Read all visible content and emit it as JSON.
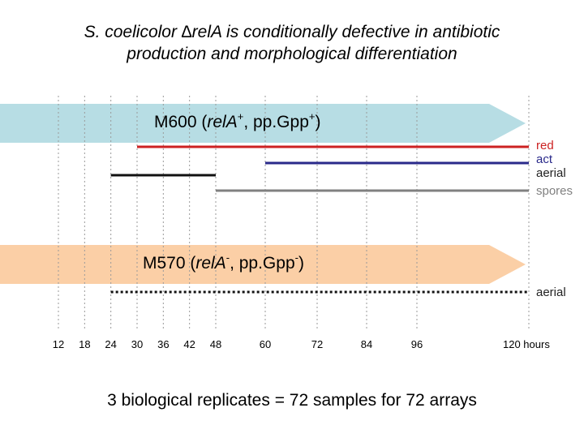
{
  "title": {
    "line1": "S. coelicolor ∆relA is conditionally defective in antibiotic",
    "line2": "production and morphological differentiation"
  },
  "strains": [
    {
      "label_pre": "M600 (",
      "gene": "relA",
      "gene_sup": "+",
      "mid": ", pp.Gpp",
      "ppgpp_sup": "+",
      "post": ")",
      "color": "#b7dde4"
    },
    {
      "label_pre": "M570 (",
      "gene": "relA",
      "gene_sup": "-",
      "mid": ", pp.Gpp",
      "ppgpp_sup": "-",
      "post": ")",
      "color": "#fbcfa6"
    }
  ],
  "timeline": {
    "unit": "hours",
    "ticks": [
      12,
      18,
      24,
      30,
      36,
      42,
      48,
      60,
      72,
      84,
      96,
      120
    ],
    "tick_labels": [
      "12",
      "18",
      "24",
      "30",
      "36",
      "42",
      "48",
      "60",
      "72",
      "84",
      "96",
      "120 hours"
    ]
  },
  "m600_tracks": [
    {
      "name": "red",
      "start_h": 30,
      "end_h": 120,
      "color": "#cc2222",
      "style": "solid"
    },
    {
      "name": "act",
      "start_h": 60,
      "end_h": 120,
      "color": "#2a2a8a",
      "style": "solid"
    },
    {
      "name": "aerial",
      "start_h": 24,
      "end_h": 48,
      "color": "#111111",
      "style": "solid"
    },
    {
      "name": "spores",
      "start_h": 48,
      "end_h": 120,
      "color": "#808080",
      "style": "solid"
    }
  ],
  "m570_tracks": [
    {
      "name": "aerial",
      "start_h": 24,
      "end_h": 120,
      "color": "#111111",
      "style": "dotted"
    }
  ],
  "legend": {
    "red": "red",
    "act": "act",
    "aerial": "aerial",
    "spores": "spores",
    "m570_aerial": "aerial"
  },
  "footer": "3 biological replicates = 72 samples for 72 arrays"
}
